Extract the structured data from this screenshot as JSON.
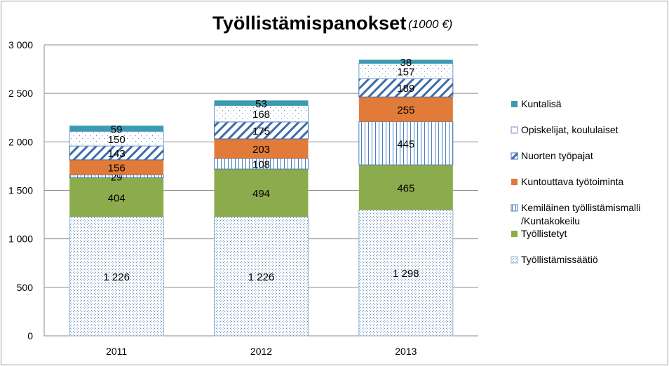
{
  "chart_data": {
    "type": "bar",
    "stacked": true,
    "title": "Työllistämispanokset",
    "subtitle": "(1000 €)",
    "categories": [
      "2011",
      "2012",
      "2013"
    ],
    "ylim": [
      0,
      3000
    ],
    "yticks": [
      0,
      500,
      1000,
      1500,
      2000,
      2500,
      3000
    ],
    "ytick_labels": [
      "0",
      "500",
      "1 000",
      "1 500",
      "2 000",
      "2 500",
      "3 000"
    ],
    "grid": true,
    "legend_position": "right",
    "series": [
      {
        "name": "Työllistämissäätiö",
        "values": [
          1226,
          1226,
          1298
        ],
        "labels": [
          "1 226",
          "1 226",
          "1 298"
        ],
        "color": "#8fb0d8",
        "pattern": "dots"
      },
      {
        "name": "Työllistetyt",
        "values": [
          404,
          494,
          465
        ],
        "labels": [
          "404",
          "494",
          "465"
        ],
        "color": "#8cab4c",
        "pattern": "solid"
      },
      {
        "name": "Kemiläinen työllistämismalli /Kuntakokeilu",
        "legend_lines": [
          "Kemiläinen työllistämismalli",
          "/Kuntakokeilu"
        ],
        "values": [
          29,
          108,
          445
        ],
        "labels": [
          "29",
          "108",
          "445"
        ],
        "color": "#4a7fc1",
        "pattern": "vlines"
      },
      {
        "name": "Kuntouttava työtoiminta",
        "values": [
          156,
          203,
          255
        ],
        "labels": [
          "156",
          "203",
          "255"
        ],
        "color": "#e07b39",
        "pattern": "solid"
      },
      {
        "name": "Nuorten työpajat",
        "values": [
          143,
          175,
          189
        ],
        "labels": [
          "143",
          "175",
          "189"
        ],
        "color": "#3d6bab",
        "pattern": "diag"
      },
      {
        "name": "Opiskelijat, koululaiset",
        "values": [
          150,
          168,
          157
        ],
        "labels": [
          "150",
          "168",
          "157"
        ],
        "color": "#6f9bd0",
        "pattern": "sparsedots"
      },
      {
        "name": "Kuntalisä",
        "values": [
          59,
          53,
          38
        ],
        "labels": [
          "59",
          "53",
          "38"
        ],
        "color": "#3b9bb0",
        "pattern": "solid"
      }
    ],
    "legend_order": [
      6,
      5,
      4,
      3,
      2,
      1,
      0
    ]
  }
}
